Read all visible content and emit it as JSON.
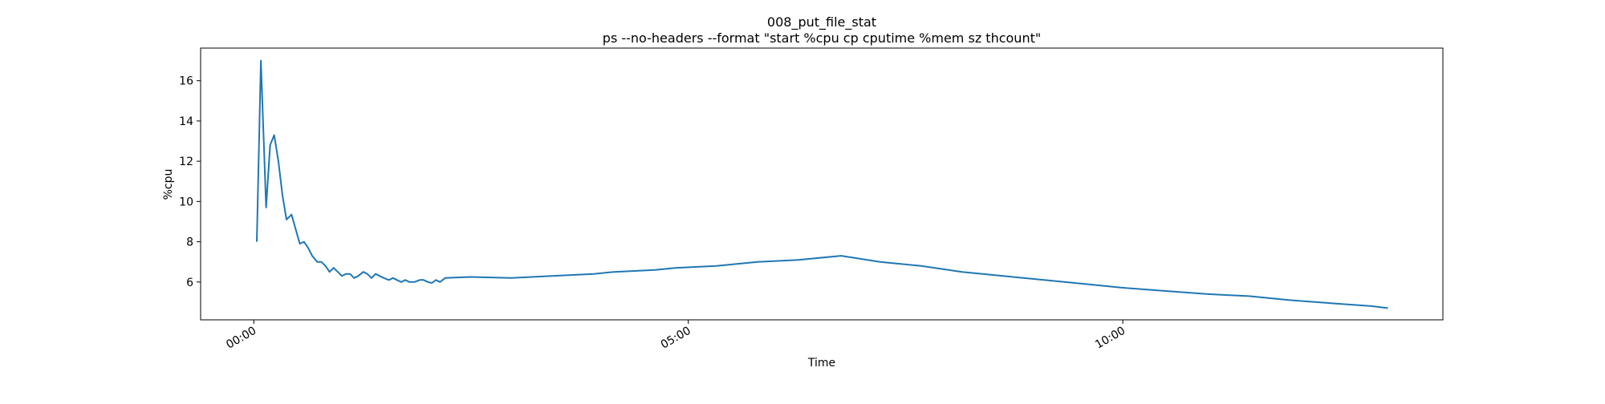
{
  "chart_data": {
    "type": "line",
    "title": "008_put_file_stat",
    "subtitle": "ps --no-headers --format \"start %cpu cp cputime %mem sz thcount\"",
    "x_label": "Time",
    "y_label": "%cpu",
    "x": [
      2.1,
      4.9,
      8.5,
      11.3,
      14.1,
      17,
      19.8,
      22.6,
      26.1,
      29,
      31.8,
      34.6,
      37.5,
      40.3,
      43.8,
      46.6,
      49.5,
      52.3,
      55.1,
      58,
      60.8,
      63.6,
      66.4,
      69.3,
      72.1,
      75.6,
      78.4,
      81.3,
      84.1,
      86.9,
      89.8,
      93.3,
      96.1,
      98.9,
      101.8,
      104.6,
      107.4,
      111,
      114.5,
      117.3,
      120.1,
      123,
      125.8,
      128.6,
      132.2,
      149.8,
      178,
      206,
      234.6,
      248.8,
      277,
      291,
      319.4,
      347.7,
      376,
      405.6,
      432.5,
      460.8,
      489,
      517.3,
      545.6,
      573.9,
      602,
      630.4,
      658.7,
      687,
      715,
      743.5,
      771.7,
      783
    ],
    "values": [
      8,
      17,
      9.7,
      12.8,
      13.3,
      12,
      10.3,
      9.1,
      9.35,
      8.6,
      7.9,
      8.0,
      7.7,
      7.3,
      7.0,
      7.0,
      6.8,
      6.5,
      6.7,
      6.5,
      6.3,
      6.4,
      6.4,
      6.2,
      6.3,
      6.5,
      6.4,
      6.2,
      6.4,
      6.3,
      6.2,
      6.1,
      6.2,
      6.1,
      6.0,
      6.1,
      6.0,
      6.0,
      6.1,
      6.1,
      6.0,
      5.95,
      6.1,
      6.0,
      6.2,
      6.25,
      6.2,
      6.3,
      6.4,
      6.5,
      6.6,
      6.7,
      6.8,
      7.0,
      7.1,
      7.3,
      7.0,
      6.8,
      6.5,
      6.3,
      6.1,
      5.9,
      5.7,
      5.55,
      5.4,
      5.3,
      5.1,
      4.95,
      4.8,
      4.7
    ],
    "color": "#1f77b4",
    "xlim": [
      -36.7,
      821
    ],
    "xticks": [
      {
        "value": 0,
        "label": "00:00"
      },
      {
        "value": 300,
        "label": "05:00"
      },
      {
        "value": 600,
        "label": "10:00"
      }
    ],
    "ylim": [
      4.12,
      17.62
    ],
    "yticks": [
      6,
      8,
      10,
      12,
      14,
      16
    ]
  }
}
